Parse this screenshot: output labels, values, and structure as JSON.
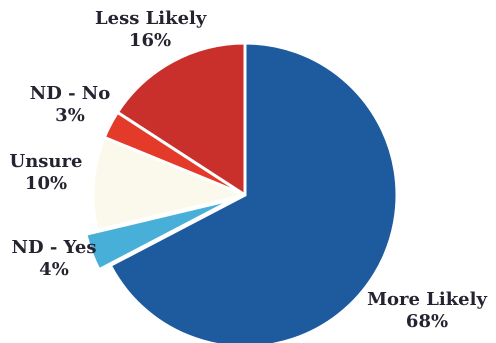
{
  "chart_data": {
    "type": "pie",
    "title": "",
    "slices": [
      {
        "name": "More Likely",
        "value": 68,
        "value_label": "68%",
        "color": "#1d5a9e"
      },
      {
        "name": "ND - Yes",
        "value": 4,
        "value_label": "4%",
        "color": "#48b0d8",
        "exploded": true
      },
      {
        "name": "Unsure",
        "value": 10,
        "value_label": "10%",
        "color": "#fbf8ec"
      },
      {
        "name": "ND - No",
        "value": 3,
        "value_label": "3%",
        "color": "#e43a2a"
      },
      {
        "name": "Less Likely",
        "value": 16,
        "value_label": "16%",
        "color": "#c9302c"
      }
    ],
    "start_angle": "12 o'clock",
    "direction": "clockwise",
    "legend": "none",
    "labels": "outside slices"
  }
}
